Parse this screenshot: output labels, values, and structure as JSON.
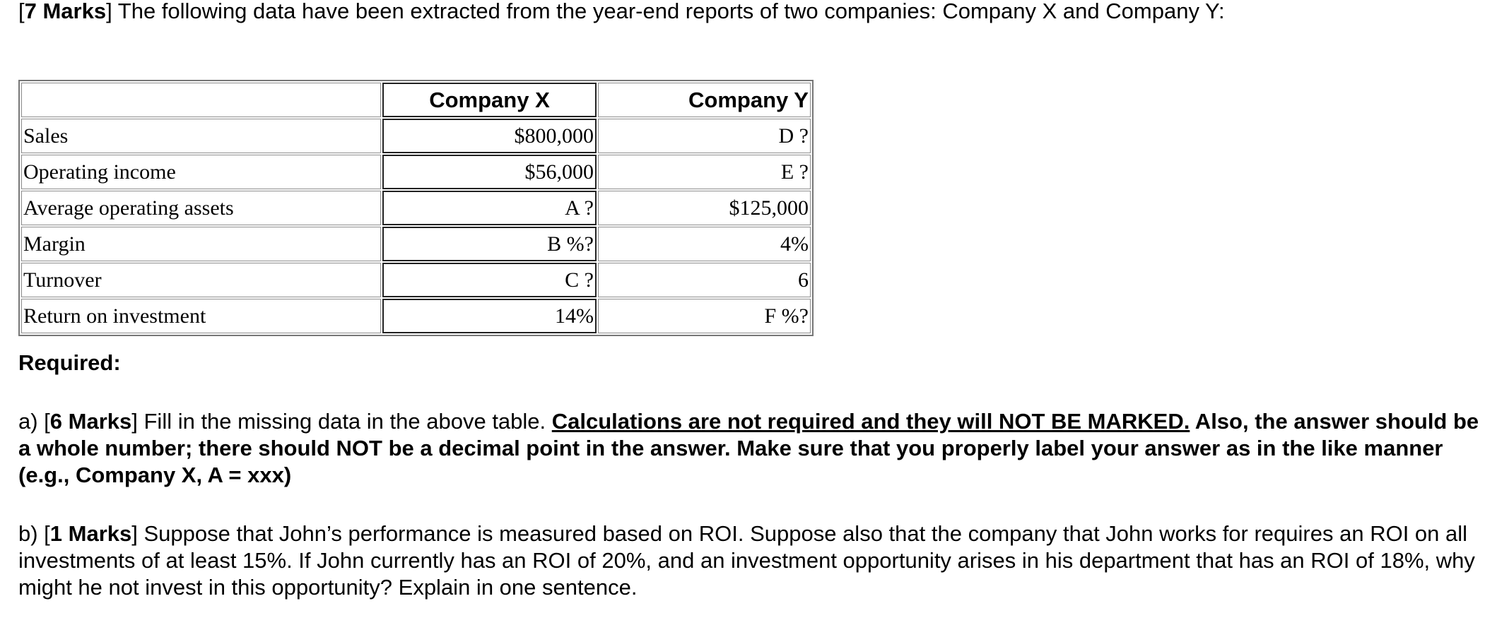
{
  "intro": {
    "marks": "7 Marks",
    "text": " The following data have been extracted from the year-end reports of two companies: Company X and Company Y:"
  },
  "table": {
    "headers": [
      "",
      "Company X",
      "Company Y"
    ],
    "rows": [
      {
        "label": "Sales",
        "x": "$800,000",
        "y": "D ?"
      },
      {
        "label": "Operating income",
        "x": "$56,000",
        "y": "E ?"
      },
      {
        "label": "Average operating assets",
        "x": "A ?",
        "y": "$125,000"
      },
      {
        "label": "Margin",
        "x": "B %?",
        "y": "4%"
      },
      {
        "label": "Turnover",
        "x": "C ?",
        "y": "6"
      },
      {
        "label": "Return on investment",
        "x": "14%",
        "y": "F %?"
      }
    ]
  },
  "required": "Required:",
  "part_a": {
    "prefix": "a) [",
    "marks": "6 Marks",
    "text": "] Fill in the missing data in the above table.  ",
    "underlined": "Calculations are not required and they will NOT BE MARKED.",
    "bold_rest": "  Also, the answer should be a whole number; there should NOT be a decimal point in the answer.   Make sure that you properly label your answer as in the like manner (e.g., Company X, A = xxx)"
  },
  "part_b": {
    "prefix": "b) [",
    "marks": "1 Marks",
    "text": "] Suppose that John’s performance is measured based on ROI.  Suppose also that the company that John works for requires an ROI on all investments of at least 15%.  If John currently has an ROI of 20%, and an investment opportunity arises in his department that has an ROI of 18%, why might he not invest in this opportunity?  Explain in one sentence."
  }
}
